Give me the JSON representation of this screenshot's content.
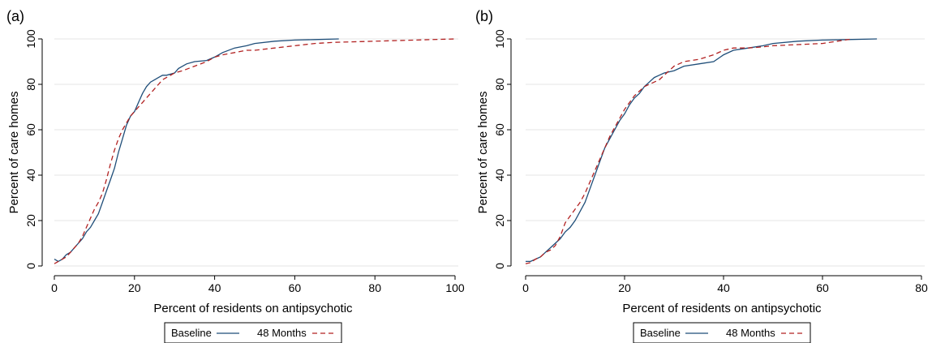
{
  "colors": {
    "baseline": "#1f4e79",
    "months48": "#b22222"
  },
  "chart_data": [
    {
      "type": "line",
      "panel_label": "(a)",
      "xlabel": "Percent of residents on antipsychotic",
      "ylabel": "Percent of care homes",
      "xlim": [
        0,
        100
      ],
      "ylim": [
        0,
        100
      ],
      "xticks": [
        0,
        20,
        40,
        60,
        80,
        100
      ],
      "yticks": [
        0,
        20,
        40,
        60,
        80,
        100
      ],
      "grid": true,
      "legend_position": "bottom-center",
      "series": [
        {
          "name": "Baseline",
          "style": "solid",
          "points": [
            [
              0,
              3
            ],
            [
              1,
              2
            ],
            [
              2,
              3
            ],
            [
              3,
              5
            ],
            [
              4,
              6
            ],
            [
              5,
              8
            ],
            [
              6,
              10
            ],
            [
              7,
              12
            ],
            [
              8,
              15
            ],
            [
              9,
              17
            ],
            [
              10,
              20
            ],
            [
              11,
              23
            ],
            [
              12,
              28
            ],
            [
              13,
              33
            ],
            [
              14,
              38
            ],
            [
              15,
              43
            ],
            [
              16,
              50
            ],
            [
              17,
              56
            ],
            [
              18,
              62
            ],
            [
              19,
              66
            ],
            [
              20,
              68
            ],
            [
              21,
              72
            ],
            [
              22,
              76
            ],
            [
              23,
              79
            ],
            [
              24,
              81
            ],
            [
              25,
              82
            ],
            [
              26,
              83
            ],
            [
              27,
              84
            ],
            [
              28,
              84
            ],
            [
              30,
              85
            ],
            [
              31,
              87
            ],
            [
              33,
              89
            ],
            [
              35,
              90
            ],
            [
              38,
              90.5
            ],
            [
              40,
              92
            ],
            [
              42,
              94
            ],
            [
              45,
              96
            ],
            [
              48,
              97
            ],
            [
              50,
              98
            ],
            [
              55,
              99
            ],
            [
              60,
              99.5
            ],
            [
              65,
              99.7
            ],
            [
              71,
              100
            ]
          ]
        },
        {
          "name": "48 Months",
          "style": "dashed",
          "points": [
            [
              0,
              1
            ],
            [
              1,
              2
            ],
            [
              2,
              3
            ],
            [
              3,
              4
            ],
            [
              4,
              6
            ],
            [
              5,
              8
            ],
            [
              6,
              10
            ],
            [
              7,
              13
            ],
            [
              8,
              17
            ],
            [
              9,
              21
            ],
            [
              10,
              25
            ],
            [
              11,
              28
            ],
            [
              12,
              32
            ],
            [
              13,
              38
            ],
            [
              14,
              45
            ],
            [
              15,
              51
            ],
            [
              16,
              56
            ],
            [
              17,
              60
            ],
            [
              18,
              63
            ],
            [
              19,
              66
            ],
            [
              20,
              68
            ],
            [
              21,
              70
            ],
            [
              22,
              72
            ],
            [
              23,
              74
            ],
            [
              24,
              76
            ],
            [
              25,
              78
            ],
            [
              26,
              80
            ],
            [
              27,
              82
            ],
            [
              28,
              83
            ],
            [
              29,
              84
            ],
            [
              30,
              85
            ],
            [
              32,
              86
            ],
            [
              35,
              88
            ],
            [
              38,
              90
            ],
            [
              40,
              92
            ],
            [
              42,
              93
            ],
            [
              45,
              94
            ],
            [
              48,
              95
            ],
            [
              50,
              95
            ],
            [
              55,
              96
            ],
            [
              60,
              97
            ],
            [
              65,
              98
            ],
            [
              70,
              98.5
            ],
            [
              80,
              99
            ],
            [
              90,
              99.5
            ],
            [
              100,
              100
            ]
          ]
        }
      ]
    },
    {
      "type": "line",
      "panel_label": "(b)",
      "xlabel": "Percent of residents on antipsychotic",
      "ylabel": "Percent of care homes",
      "xlim": [
        0,
        80
      ],
      "ylim": [
        0,
        100
      ],
      "xticks": [
        0,
        20,
        40,
        60,
        80
      ],
      "yticks": [
        0,
        20,
        40,
        60,
        80,
        100
      ],
      "grid": true,
      "legend_position": "bottom-center",
      "series": [
        {
          "name": "Baseline",
          "style": "solid",
          "points": [
            [
              0,
              2
            ],
            [
              1,
              2
            ],
            [
              2,
              3
            ],
            [
              3,
              4
            ],
            [
              4,
              6
            ],
            [
              5,
              8
            ],
            [
              6,
              10
            ],
            [
              7,
              12
            ],
            [
              8,
              15
            ],
            [
              9,
              17
            ],
            [
              10,
              20
            ],
            [
              11,
              24
            ],
            [
              12,
              28
            ],
            [
              13,
              34
            ],
            [
              14,
              40
            ],
            [
              15,
              46
            ],
            [
              16,
              52
            ],
            [
              17,
              56
            ],
            [
              18,
              60
            ],
            [
              19,
              64
            ],
            [
              20,
              67
            ],
            [
              21,
              71
            ],
            [
              22,
              74
            ],
            [
              23,
              76
            ],
            [
              24,
              79
            ],
            [
              25,
              81
            ],
            [
              26,
              83
            ],
            [
              27,
              84
            ],
            [
              28,
              85
            ],
            [
              30,
              86
            ],
            [
              32,
              88
            ],
            [
              35,
              89
            ],
            [
              38,
              90
            ],
            [
              40,
              93
            ],
            [
              42,
              95
            ],
            [
              45,
              96
            ],
            [
              48,
              97
            ],
            [
              50,
              98
            ],
            [
              55,
              99
            ],
            [
              60,
              99.5
            ],
            [
              65,
              99.7
            ],
            [
              71,
              100
            ]
          ]
        },
        {
          "name": "48 Months",
          "style": "dashed",
          "points": [
            [
              0,
              1
            ],
            [
              1,
              1.5
            ],
            [
              2,
              3
            ],
            [
              3,
              4
            ],
            [
              4,
              6
            ],
            [
              5,
              7
            ],
            [
              6,
              9
            ],
            [
              7,
              13
            ],
            [
              8,
              19
            ],
            [
              9,
              22
            ],
            [
              10,
              25
            ],
            [
              11,
              28
            ],
            [
              12,
              32
            ],
            [
              13,
              37
            ],
            [
              14,
              42
            ],
            [
              15,
              47
            ],
            [
              16,
              52
            ],
            [
              17,
              57
            ],
            [
              18,
              61
            ],
            [
              19,
              65
            ],
            [
              20,
              69
            ],
            [
              21,
              72
            ],
            [
              22,
              75
            ],
            [
              23,
              77
            ],
            [
              24,
              79
            ],
            [
              25,
              80
            ],
            [
              26,
              81
            ],
            [
              27,
              82
            ],
            [
              28,
              84
            ],
            [
              29,
              86
            ],
            [
              30,
              88
            ],
            [
              32,
              90
            ],
            [
              35,
              91
            ],
            [
              38,
              93
            ],
            [
              40,
              95
            ],
            [
              42,
              96
            ],
            [
              45,
              96
            ],
            [
              48,
              96.5
            ],
            [
              50,
              97
            ],
            [
              55,
              97.5
            ],
            [
              60,
              98
            ],
            [
              63,
              99
            ],
            [
              66,
              100
            ]
          ]
        }
      ]
    }
  ]
}
